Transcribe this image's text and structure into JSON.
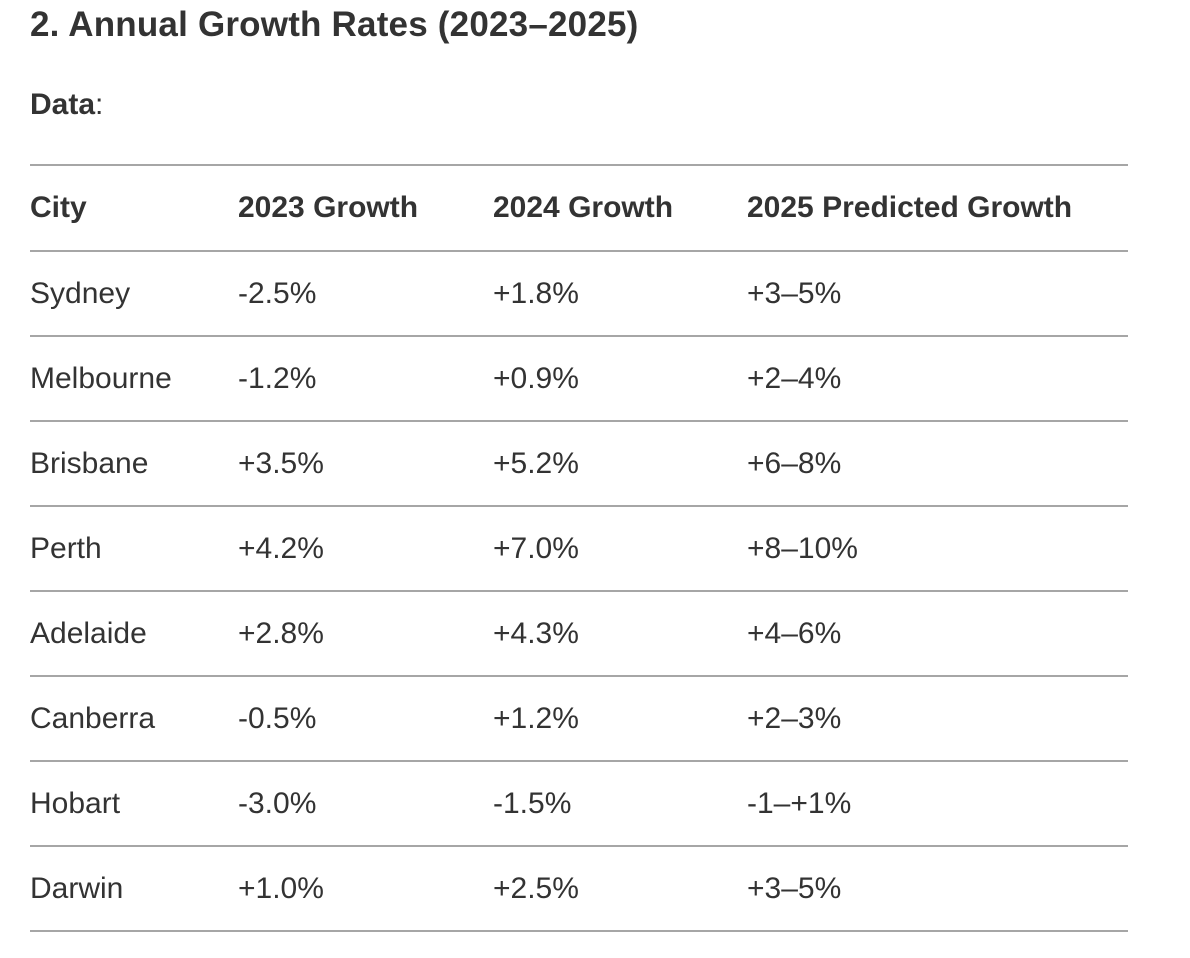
{
  "heading": "2. Annual Growth Rates (2023–2025)",
  "data_label": {
    "bold": "Data",
    "suffix": ":"
  },
  "table": {
    "headers": [
      "City",
      "2023 Growth",
      "2024 Growth",
      "2025 Predicted Growth"
    ],
    "rows": [
      {
        "city": "Sydney",
        "growth_2023": "-2.5%",
        "growth_2024": "+1.8%",
        "growth_2025": "+3–5%"
      },
      {
        "city": "Melbourne",
        "growth_2023": "-1.2%",
        "growth_2024": "+0.9%",
        "growth_2025": "+2–4%"
      },
      {
        "city": "Brisbane",
        "growth_2023": "+3.5%",
        "growth_2024": "+5.2%",
        "growth_2025": "+6–8%"
      },
      {
        "city": "Perth",
        "growth_2023": "+4.2%",
        "growth_2024": "+7.0%",
        "growth_2025": "+8–10%"
      },
      {
        "city": "Adelaide",
        "growth_2023": "+2.8%",
        "growth_2024": "+4.3%",
        "growth_2025": "+4–6%"
      },
      {
        "city": "Canberra",
        "growth_2023": "-0.5%",
        "growth_2024": "+1.2%",
        "growth_2025": "+2–3%"
      },
      {
        "city": "Hobart",
        "growth_2023": "-3.0%",
        "growth_2024": "-1.5%",
        "growth_2025": "-1–+1%"
      },
      {
        "city": "Darwin",
        "growth_2023": "+1.0%",
        "growth_2024": "+2.5%",
        "growth_2025": "+3–5%"
      }
    ]
  },
  "colors": {
    "text": "#333333",
    "divider": "#a6a6a6",
    "background": "#ffffff"
  }
}
